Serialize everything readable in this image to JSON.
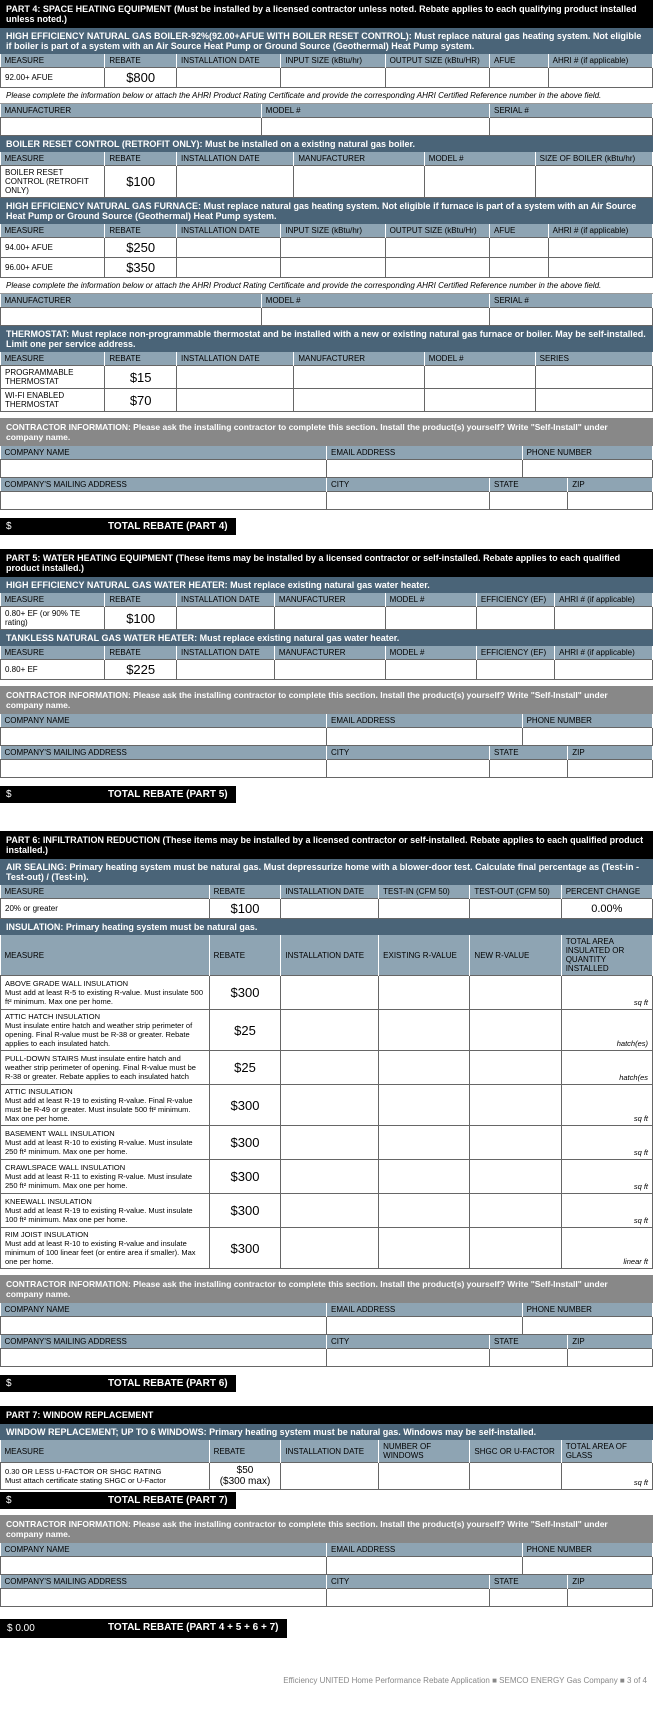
{
  "part4": {
    "header": "PART 4: SPACE HEATING EQUIPMENT (Must be installed by a licensed contractor unless noted. Rebate applies to each qualifying product installed unless noted.)",
    "boiler": {
      "sub": "HIGH EFFICIENCY NATURAL GAS BOILER-92%(92.00+AFUE WITH BOILER RESET CONTROL): Must replace natural gas heating system. Not eligible if boiler is part of a system with an Air Source Heat Pump or Ground Source (Geothermal) Heat Pump system.",
      "cols": [
        "MEASURE",
        "REBATE",
        "INSTALLATION DATE",
        "INPUT SIZE (kBtu/hr)",
        "OUTPUT SIZE (kBtu/HR)",
        "AFUE",
        "AHRI # (if applicable)"
      ],
      "rows": [
        [
          "92.00+ AFUE",
          "$800",
          "",
          "",
          "",
          "",
          ""
        ]
      ],
      "note": "Please complete the information below or attach the AHRI Product Rating Certificate and provide the corresponding AHRI Certified Reference number in the above field.",
      "ref_cols": [
        "MANUFACTURER",
        "MODEL #",
        "SERIAL #"
      ]
    },
    "reset": {
      "sub": "BOILER RESET CONTROL (RETROFIT ONLY): Must be installed on a existing natural gas boiler.",
      "cols": [
        "MEASURE",
        "REBATE",
        "INSTALLATION DATE",
        "MANUFACTURER",
        "MODEL #",
        "SIZE OF BOILER (kBtu/hr)"
      ],
      "rows": [
        [
          "BOILER RESET CONTROL (RETROFIT ONLY)",
          "$100",
          "",
          "",
          "",
          ""
        ]
      ]
    },
    "furnace": {
      "sub": "HIGH EFFICIENCY NATURAL GAS FURNACE: Must replace natural gas heating system. Not eligible if furnace is part of a system with an Air Source Heat Pump or Ground Source (Geothermal) Heat Pump system.",
      "cols": [
        "MEASURE",
        "REBATE",
        "INSTALLATION DATE",
        "INPUT SIZE (kBtu/hr)",
        "OUTPUT SIZE (kBtu/Hr)",
        "AFUE",
        "AHRI # (if applicable)"
      ],
      "rows": [
        [
          "94.00+ AFUE",
          "$250",
          "",
          "",
          "",
          "",
          ""
        ],
        [
          "96.00+ AFUE",
          "$350",
          "",
          "",
          "",
          "",
          ""
        ]
      ],
      "note": "Please complete the information below or attach the AHRI Product Rating Certificate and provide the corresponding AHRI Certified Reference number in the above field.",
      "ref_cols": [
        "MANUFACTURER",
        "MODEL #",
        "SERIAL #"
      ]
    },
    "thermo": {
      "sub": "THERMOSTAT: Must replace non-programmable thermostat and be installed with a new or existing natural gas furnace or boiler. May be self-installed. Limit one per service address.",
      "cols": [
        "MEASURE",
        "REBATE",
        "INSTALLATION DATE",
        "MANUFACTURER",
        "MODEL #",
        "SERIES"
      ],
      "rows": [
        [
          "PROGRAMMABLE THERMOSTAT",
          "$15",
          "",
          "",
          "",
          ""
        ],
        [
          "WI-FI ENABLED THERMOSTAT",
          "$70",
          "",
          "",
          "",
          ""
        ]
      ]
    },
    "contractor_text": "CONTRACTOR INFORMATION: Please ask the installing contractor to complete this section. Install the product(s) yourself? Write \"Self-Install\" under company name.",
    "c_row1": [
      "COMPANY NAME",
      "EMAIL ADDRESS",
      "PHONE NUMBER"
    ],
    "c_row2": [
      "COMPANY'S MAILING ADDRESS",
      "CITY",
      "STATE",
      "ZIP"
    ],
    "total_prefix": "$",
    "total_label": "TOTAL REBATE (PART 4)"
  },
  "part5": {
    "header": "PART 5: WATER HEATING EQUIPMENT (These items may be installed by a licensed contractor or self-installed. Rebate applies to each qualified product installed.)",
    "wh": {
      "sub": "HIGH EFFICIENCY NATURAL GAS WATER HEATER: Must replace existing natural gas water heater.",
      "cols": [
        "MEASURE",
        "REBATE",
        "INSTALLATION DATE",
        "MANUFACTURER",
        "MODEL #",
        "EFFICIENCY (EF)",
        "AHRI # (if applicable)"
      ],
      "rows": [
        [
          "0.80+ EF (or 90% TE rating)",
          "$100",
          "",
          "",
          "",
          "",
          ""
        ]
      ]
    },
    "tankless": {
      "sub": "TANKLESS NATURAL GAS WATER HEATER: Must replace existing natural gas water heater.",
      "cols": [
        "MEASURE",
        "REBATE",
        "INSTALLATION DATE",
        "MANUFACTURER",
        "MODEL #",
        "EFFICIENCY (EF)",
        "AHRI # (if applicable)"
      ],
      "rows": [
        [
          "0.80+ EF",
          "$225",
          "",
          "",
          "",
          "",
          ""
        ]
      ]
    },
    "total_label": "TOTAL REBATE (PART 5)"
  },
  "part6": {
    "header": "PART 6: INFILTRATION REDUCTION (These items may be installed by a licensed contractor or self-installed. Rebate applies to each qualified product installed.)",
    "air": {
      "sub": "AIR SEALING: Primary heating system must be natural gas. Must depressurize home with a blower-door test. Calculate final percentage as (Test-in - Test-out) / (Test-in).",
      "cols": [
        "MEASURE",
        "REBATE",
        "INSTALLATION DATE",
        "TEST-IN (CFM 50)",
        "TEST-OUT (CFM 50)",
        "PERCENT CHANGE"
      ],
      "row": [
        "20% or greater",
        "$100",
        "",
        "",
        "",
        "0.00%"
      ]
    },
    "insul": {
      "sub": "INSULATION: Primary heating system must be natural gas.",
      "cols": [
        "MEASURE",
        "REBATE",
        "INSTALLATION DATE",
        "EXISTING R-VALUE",
        "NEW R-VALUE",
        "TOTAL AREA INSULATED OR QUANTITY INSTALLED"
      ],
      "rows": [
        {
          "m": "ABOVE GRADE WALL INSULATION\nMust add at least R-5 to existing R-value. Must insulate 500 ft² minimum. Max one per home.",
          "r": "$300",
          "u": "sq ft"
        },
        {
          "m": "ATTIC HATCH INSULATION\nMust insulate entire hatch and weather strip perimeter of opening. Final R-value must be R-38 or greater. Rebate applies to each insulated hatch.",
          "r": "$25",
          "u": "hatch(es)"
        },
        {
          "m": "PULL-DOWN STAIRS                                        Must insulate entire hatch and weather strip perimeter of opening. Final R-value must be R-38 or greater. Rebate applies to each insulated hatch",
          "r": "$25",
          "u": "hatch(es"
        },
        {
          "m": "ATTIC INSULATION\nMust add at least R-19 to existing R-value. Final R-value must be R-49 or greater. Must insulate 500 ft² minimum. Max one per home.",
          "r": "$300",
          "u": "sq ft"
        },
        {
          "m": "BASEMENT WALL INSULATION\nMust add at least R-10 to existing R-value. Must insulate 250 ft² minimum. Max one per home.",
          "r": "$300",
          "u": "sq ft"
        },
        {
          "m": "CRAWLSPACE WALL INSULATION\nMust add at least R-11 to existing R-value. Must insulate 250 ft² minimum. Max one per home.",
          "r": "$300",
          "u": "sq ft"
        },
        {
          "m": "KNEEWALL INSULATION\nMust add at least R-19 to existing R-value. Must insulate 100 ft² minimum. Max one per home.",
          "r": "$300",
          "u": "sq ft"
        },
        {
          "m": "RIM JOIST INSULATION\nMust add at least R-10 to existing R-value and insulate minimum of 100 linear feet (or entire area if smaller). Max one per home.",
          "r": "$300",
          "u": "linear ft"
        }
      ]
    },
    "total_label": "TOTAL REBATE (PART 6)"
  },
  "part7": {
    "header": "PART 7: WINDOW REPLACEMENT",
    "sub": "WINDOW REPLACEMENT; UP TO 6 WINDOWS: Primary heating system must be natural gas. Windows may be self-installed.",
    "cols": [
      "MEASURE",
      "REBATE",
      "INSTALLATION DATE",
      "NUMBER OF WINDOWS",
      "SHGC OR U-FACTOR",
      "TOTAL AREA OF GLASS"
    ],
    "row": [
      "0.30 OR LESS U-FACTOR OR SHGC RATING\nMust attach certificate stating SHGC or U-Factor",
      "$50\n($300 max)",
      "",
      "",
      "",
      "sq ft"
    ],
    "total_label": "TOTAL REBATE (PART 7)"
  },
  "grand": {
    "prefix": "$ 0.00",
    "label": "TOTAL REBATE (PART 4 + 5 + 6 + 7)"
  },
  "footer": "Efficiency UNITED Home Performance Rebate Application ■ SEMCO ENERGY Gas Company ■ 3 of 4"
}
